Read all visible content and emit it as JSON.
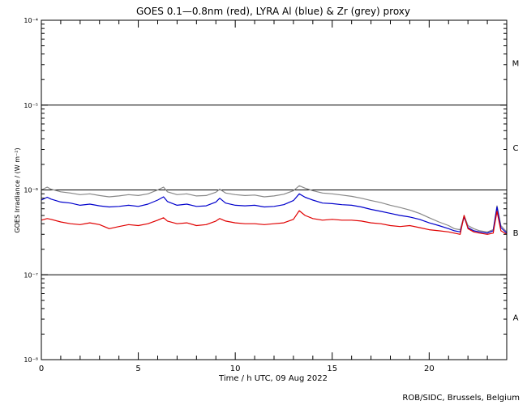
{
  "chart_data": {
    "type": "line",
    "title": "GOES 0.1—0.8nm (red), LYRA Al (blue) & Zr (grey) proxy",
    "xlabel": "Time / h UTC, 09 Aug 2022",
    "ylabel": "GOES Irradiance / (W m⁻²)",
    "footer": "ROB/SIDC, Brussels, Belgium",
    "xlim": [
      0,
      24
    ],
    "ylim": [
      1e-08,
      0.0001
    ],
    "yscale": "log",
    "x_ticks": [
      0,
      5,
      10,
      15,
      20
    ],
    "y_ticks": [
      {
        "value": 0.0001,
        "label": "10⁻⁴"
      },
      {
        "value": 1e-05,
        "label": "10⁻⁵"
      },
      {
        "value": 1e-06,
        "label": "10⁻⁶"
      },
      {
        "value": 1e-07,
        "label": "10⁻⁷"
      },
      {
        "value": 1e-08,
        "label": "10⁻⁸"
      }
    ],
    "class_labels": [
      {
        "label": "M",
        "value": 3.16e-05
      },
      {
        "label": "C",
        "value": 3.16e-06
      },
      {
        "label": "B",
        "value": 3.16e-07
      },
      {
        "label": "A",
        "value": 3.16e-08
      }
    ],
    "reference_lines": [
      1e-05,
      1e-06,
      1e-07
    ],
    "series": [
      {
        "name": "red",
        "color": "#e00000",
        "x": [
          0,
          0.3,
          0.5,
          1,
          1.5,
          2,
          2.5,
          3,
          3.5,
          4,
          4.5,
          5,
          5.5,
          6,
          6.3,
          6.5,
          7,
          7.5,
          8,
          8.5,
          9,
          9.2,
          9.5,
          10,
          10.5,
          11,
          11.5,
          12,
          12.5,
          13,
          13.3,
          13.6,
          14,
          14.5,
          15,
          15.5,
          16,
          16.5,
          17,
          17.5,
          18,
          18.5,
          19,
          19.5,
          20,
          20.5,
          21,
          21.3,
          21.6,
          21.8,
          22,
          22.3,
          22.6,
          23,
          23.3,
          23.5,
          23.7,
          24
        ],
        "y": [
          4.4e-07,
          4.6e-07,
          4.5e-07,
          4.2e-07,
          4e-07,
          3.9e-07,
          4.1e-07,
          3.9e-07,
          3.5e-07,
          3.7e-07,
          3.9e-07,
          3.8e-07,
          4e-07,
          4.4e-07,
          4.7e-07,
          4.3e-07,
          4e-07,
          4.1e-07,
          3.8e-07,
          3.9e-07,
          4.3e-07,
          4.6e-07,
          4.3e-07,
          4.1e-07,
          4e-07,
          4e-07,
          3.9e-07,
          4e-07,
          4.1e-07,
          4.5e-07,
          5.7e-07,
          5e-07,
          4.6e-07,
          4.4e-07,
          4.5e-07,
          4.4e-07,
          4.4e-07,
          4.3e-07,
          4.1e-07,
          4e-07,
          3.8e-07,
          3.7e-07,
          3.8e-07,
          3.6e-07,
          3.4e-07,
          3.3e-07,
          3.2e-07,
          3.1e-07,
          3e-07,
          5e-07,
          3.5e-07,
          3.2e-07,
          3.1e-07,
          3e-07,
          3.1e-07,
          5.6e-07,
          3.3e-07,
          3e-07
        ]
      },
      {
        "name": "blue",
        "color": "#0000cc",
        "x": [
          0,
          0.3,
          0.5,
          1,
          1.5,
          2,
          2.5,
          3,
          3.5,
          4,
          4.5,
          5,
          5.5,
          6,
          6.3,
          6.5,
          7,
          7.5,
          8,
          8.5,
          9,
          9.2,
          9.5,
          10,
          10.5,
          11,
          11.5,
          12,
          12.5,
          13,
          13.3,
          13.6,
          14,
          14.5,
          15,
          15.5,
          16,
          16.5,
          17,
          17.5,
          18,
          18.5,
          19,
          19.5,
          20,
          20.5,
          21,
          21.3,
          21.6,
          21.8,
          22,
          22.3,
          22.6,
          23,
          23.3,
          23.5,
          23.7,
          24
        ],
        "y": [
          7.6e-07,
          8.2e-07,
          7.8e-07,
          7.2e-07,
          7e-07,
          6.6e-07,
          6.8e-07,
          6.5e-07,
          6.3e-07,
          6.4e-07,
          6.6e-07,
          6.4e-07,
          6.8e-07,
          7.6e-07,
          8.3e-07,
          7.3e-07,
          6.6e-07,
          6.8e-07,
          6.4e-07,
          6.5e-07,
          7.2e-07,
          8e-07,
          7e-07,
          6.6e-07,
          6.5e-07,
          6.6e-07,
          6.3e-07,
          6.4e-07,
          6.7e-07,
          7.5e-07,
          9e-07,
          8.2e-07,
          7.6e-07,
          7e-07,
          6.9e-07,
          6.7e-07,
          6.6e-07,
          6.3e-07,
          5.9e-07,
          5.6e-07,
          5.3e-07,
          5e-07,
          4.8e-07,
          4.5e-07,
          4.1e-07,
          3.8e-07,
          3.5e-07,
          3.3e-07,
          3.2e-07,
          4.8e-07,
          3.6e-07,
          3.3e-07,
          3.2e-07,
          3.1e-07,
          3.3e-07,
          6.3e-07,
          3.6e-07,
          3.1e-07
        ]
      },
      {
        "name": "grey",
        "color": "#888888",
        "x": [
          0,
          0.3,
          0.5,
          1,
          1.5,
          2,
          2.5,
          3,
          3.5,
          4,
          4.5,
          5,
          5.5,
          6,
          6.3,
          6.5,
          7,
          7.5,
          8,
          8.5,
          9,
          9.2,
          9.5,
          10,
          10.5,
          11,
          11.5,
          12,
          12.5,
          13,
          13.3,
          13.6,
          14,
          14.5,
          15,
          15.5,
          16,
          16.5,
          17,
          17.5,
          18,
          18.5,
          19,
          19.5,
          20,
          20.5,
          21,
          21.3,
          21.6,
          21.8,
          22,
          22.3,
          22.6,
          23,
          23.3,
          23.5,
          23.7,
          24
        ],
        "y": [
          1e-06,
          1.08e-06,
          1.02e-06,
          9.5e-07,
          9.2e-07,
          8.8e-07,
          9e-07,
          8.6e-07,
          8.3e-07,
          8.5e-07,
          8.8e-07,
          8.6e-07,
          9e-07,
          1e-06,
          1.08e-06,
          9.5e-07,
          8.8e-07,
          9e-07,
          8.5e-07,
          8.6e-07,
          9.4e-07,
          1.02e-06,
          9.2e-07,
          8.8e-07,
          8.6e-07,
          8.7e-07,
          8.3e-07,
          8.5e-07,
          8.9e-07,
          9.8e-07,
          1.12e-06,
          1.05e-06,
          9.8e-07,
          9.2e-07,
          9e-07,
          8.7e-07,
          8.4e-07,
          8e-07,
          7.5e-07,
          7.1e-07,
          6.6e-07,
          6.2e-07,
          5.8e-07,
          5.3e-07,
          4.7e-07,
          4.2e-07,
          3.8e-07,
          3.5e-07,
          3.4e-07,
          5e-07,
          3.8e-07,
          3.5e-07,
          3.3e-07,
          3.2e-07,
          3.4e-07,
          6.5e-07,
          3.8e-07,
          3.2e-07
        ]
      }
    ]
  }
}
